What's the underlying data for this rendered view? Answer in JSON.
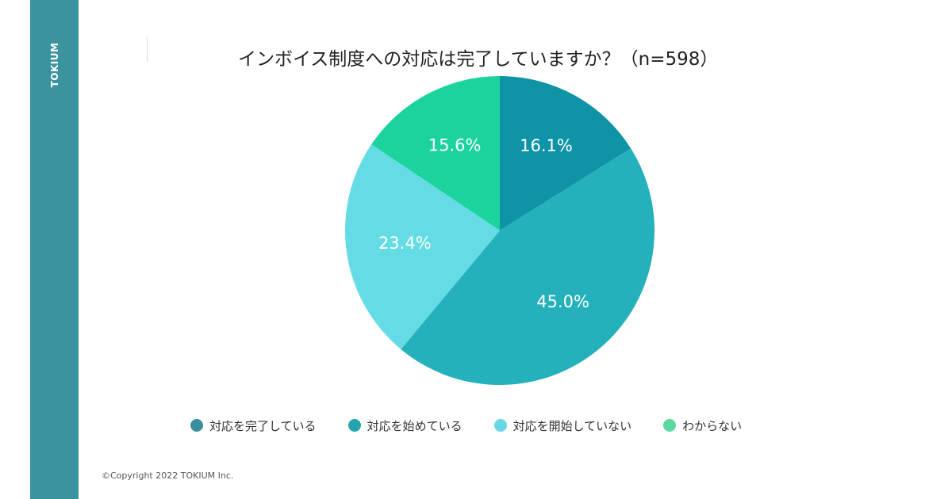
{
  "brand": "TOKIUM",
  "copyright": "©Copyright 2022 TOKIUM Inc.",
  "chart_data": {
    "type": "pie",
    "title": "インボイス制度への対応は完了していますか？（n=598）",
    "categories": [
      "対応を完了している",
      "対応を始めている",
      "対応を開始していない",
      "わからない"
    ],
    "values": [
      16.1,
      45.0,
      23.4,
      15.6
    ],
    "value_labels": [
      "16.1%",
      "45.0%",
      "23.4%",
      "15.6%"
    ],
    "colors": [
      "#0f93a7",
      "#24b1bb",
      "#65dce5",
      "#1dd39d"
    ],
    "legend_colors": [
      "#3b8f9c",
      "#24a6b1",
      "#68d8e2",
      "#5ad8a0"
    ],
    "start": "12 o'clock",
    "direction": "clockwise",
    "legend_position": "bottom"
  }
}
